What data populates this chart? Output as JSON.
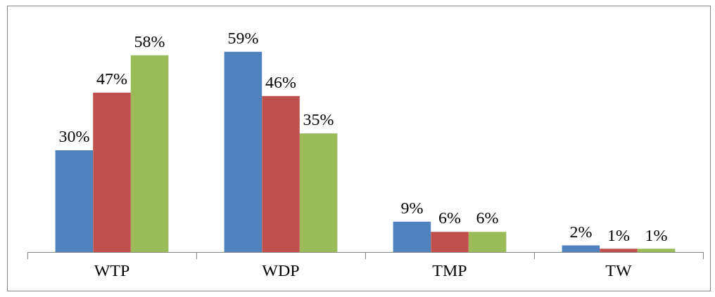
{
  "chart_data": {
    "type": "bar",
    "relative": false,
    "categories": [
      "WTP",
      "WDP",
      "TMP",
      "TW"
    ],
    "series": [
      {
        "color": "#4f81bd",
        "values": [
          30,
          59,
          9,
          2
        ],
        "value_labels": [
          "30%",
          "59%",
          "9%",
          "2%"
        ]
      },
      {
        "color": "#c0504d",
        "values": [
          47,
          46,
          6,
          1
        ],
        "value_labels": [
          "47%",
          "46%",
          "6%",
          "1%"
        ]
      },
      {
        "color": "#9bbb59",
        "values": [
          58,
          35,
          6,
          1
        ],
        "value_labels": [
          "58%",
          "35%",
          "6%",
          "1%"
        ]
      }
    ],
    "legend": false
  }
}
